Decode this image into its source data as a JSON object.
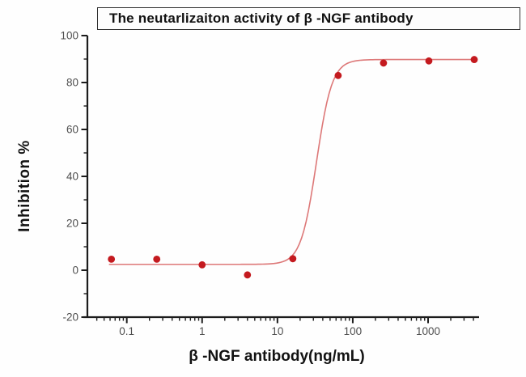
{
  "chart_data": {
    "type": "scatter",
    "title": "The neutarlizaiton activity of β -NGF antibody",
    "xlabel": "β -NGF antibody(ng/mL)",
    "ylabel": "Inhibition %",
    "x_scale": "log",
    "grid": false,
    "legend": "none",
    "xlim": [
      0.03,
      4750
    ],
    "ylim": [
      -20,
      100
    ],
    "x_ticks": [
      {
        "v": 0.1,
        "label": "0.1"
      },
      {
        "v": 1,
        "label": "1"
      },
      {
        "v": 10,
        "label": "10"
      },
      {
        "v": 100,
        "label": "100"
      },
      {
        "v": 1000,
        "label": "1000"
      }
    ],
    "y_ticks": [
      {
        "v": -20,
        "label": "-20"
      },
      {
        "v": 0,
        "label": "0"
      },
      {
        "v": 20,
        "label": "20"
      },
      {
        "v": 40,
        "label": "40"
      },
      {
        "v": 60,
        "label": "60"
      },
      {
        "v": 80,
        "label": "80"
      },
      {
        "v": 100,
        "label": "100"
      }
    ],
    "y_minor_step": 10,
    "points": [
      {
        "x": 0.0625,
        "y": 4.7
      },
      {
        "x": 0.25,
        "y": 4.7
      },
      {
        "x": 1,
        "y": 2.3
      },
      {
        "x": 4,
        "y": -2.0
      },
      {
        "x": 16,
        "y": 4.9
      },
      {
        "x": 64,
        "y": 83.0
      },
      {
        "x": 256,
        "y": 88.3
      },
      {
        "x": 1024,
        "y": 89.2
      },
      {
        "x": 4096,
        "y": 89.8
      }
    ],
    "fit_curve": {
      "model": "4PL",
      "bottom": 2.5,
      "top": 89.8,
      "ec50": 33,
      "hill": 4.2,
      "x_start": 0.058,
      "x_end": 4300
    },
    "colors": {
      "point": "#c41a1f",
      "curve": "#dd7878",
      "axis": "#1c1c1c",
      "tick_label": "#4f4f4f",
      "title_text": "#121212"
    }
  }
}
